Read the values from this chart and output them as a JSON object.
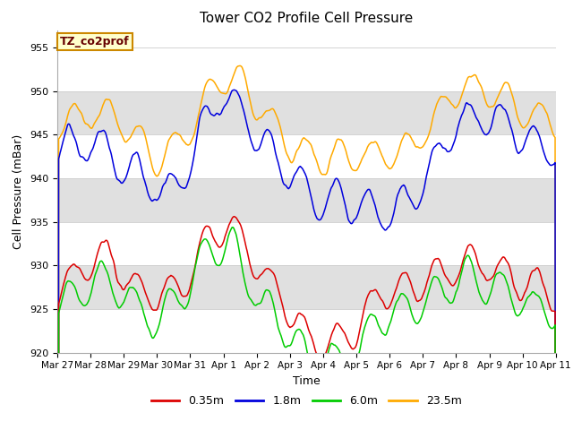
{
  "title": "Tower CO2 Profile Cell Pressure",
  "xlabel": "Time",
  "ylabel": "Cell Pressure (mBar)",
  "ylim": [
    920,
    957
  ],
  "yticks": [
    920,
    925,
    930,
    935,
    940,
    945,
    950,
    955
  ],
  "xlim": [
    0,
    360
  ],
  "xtick_labels": [
    "Mar 27",
    "Mar 28",
    "Mar 29",
    "Mar 30",
    "Mar 31",
    "Apr 1",
    "Apr 2",
    "Apr 3",
    "Apr 4",
    "Apr 5",
    "Apr 6",
    "Apr 7",
    "Apr 8",
    "Apr 9",
    "Apr 10",
    "Apr 11"
  ],
  "legend_labels": [
    "0.35m",
    "1.8m",
    "6.0m",
    "23.5m"
  ],
  "colors": {
    "0.35m": "#dd0000",
    "1.8m": "#0000dd",
    "6.0m": "#00cc00",
    "23.5m": "#ffaa00"
  },
  "annotation_text": "TZ_co2prof",
  "annotation_bbox_face": "#ffffcc",
  "annotation_bbox_edge": "#cc8800",
  "annotation_text_color": "#660000",
  "background_color": "#ffffff",
  "band_color": "#e0e0e0",
  "title_fontsize": 11,
  "axis_label_fontsize": 9,
  "tick_fontsize": 8,
  "legend_fontsize": 9
}
